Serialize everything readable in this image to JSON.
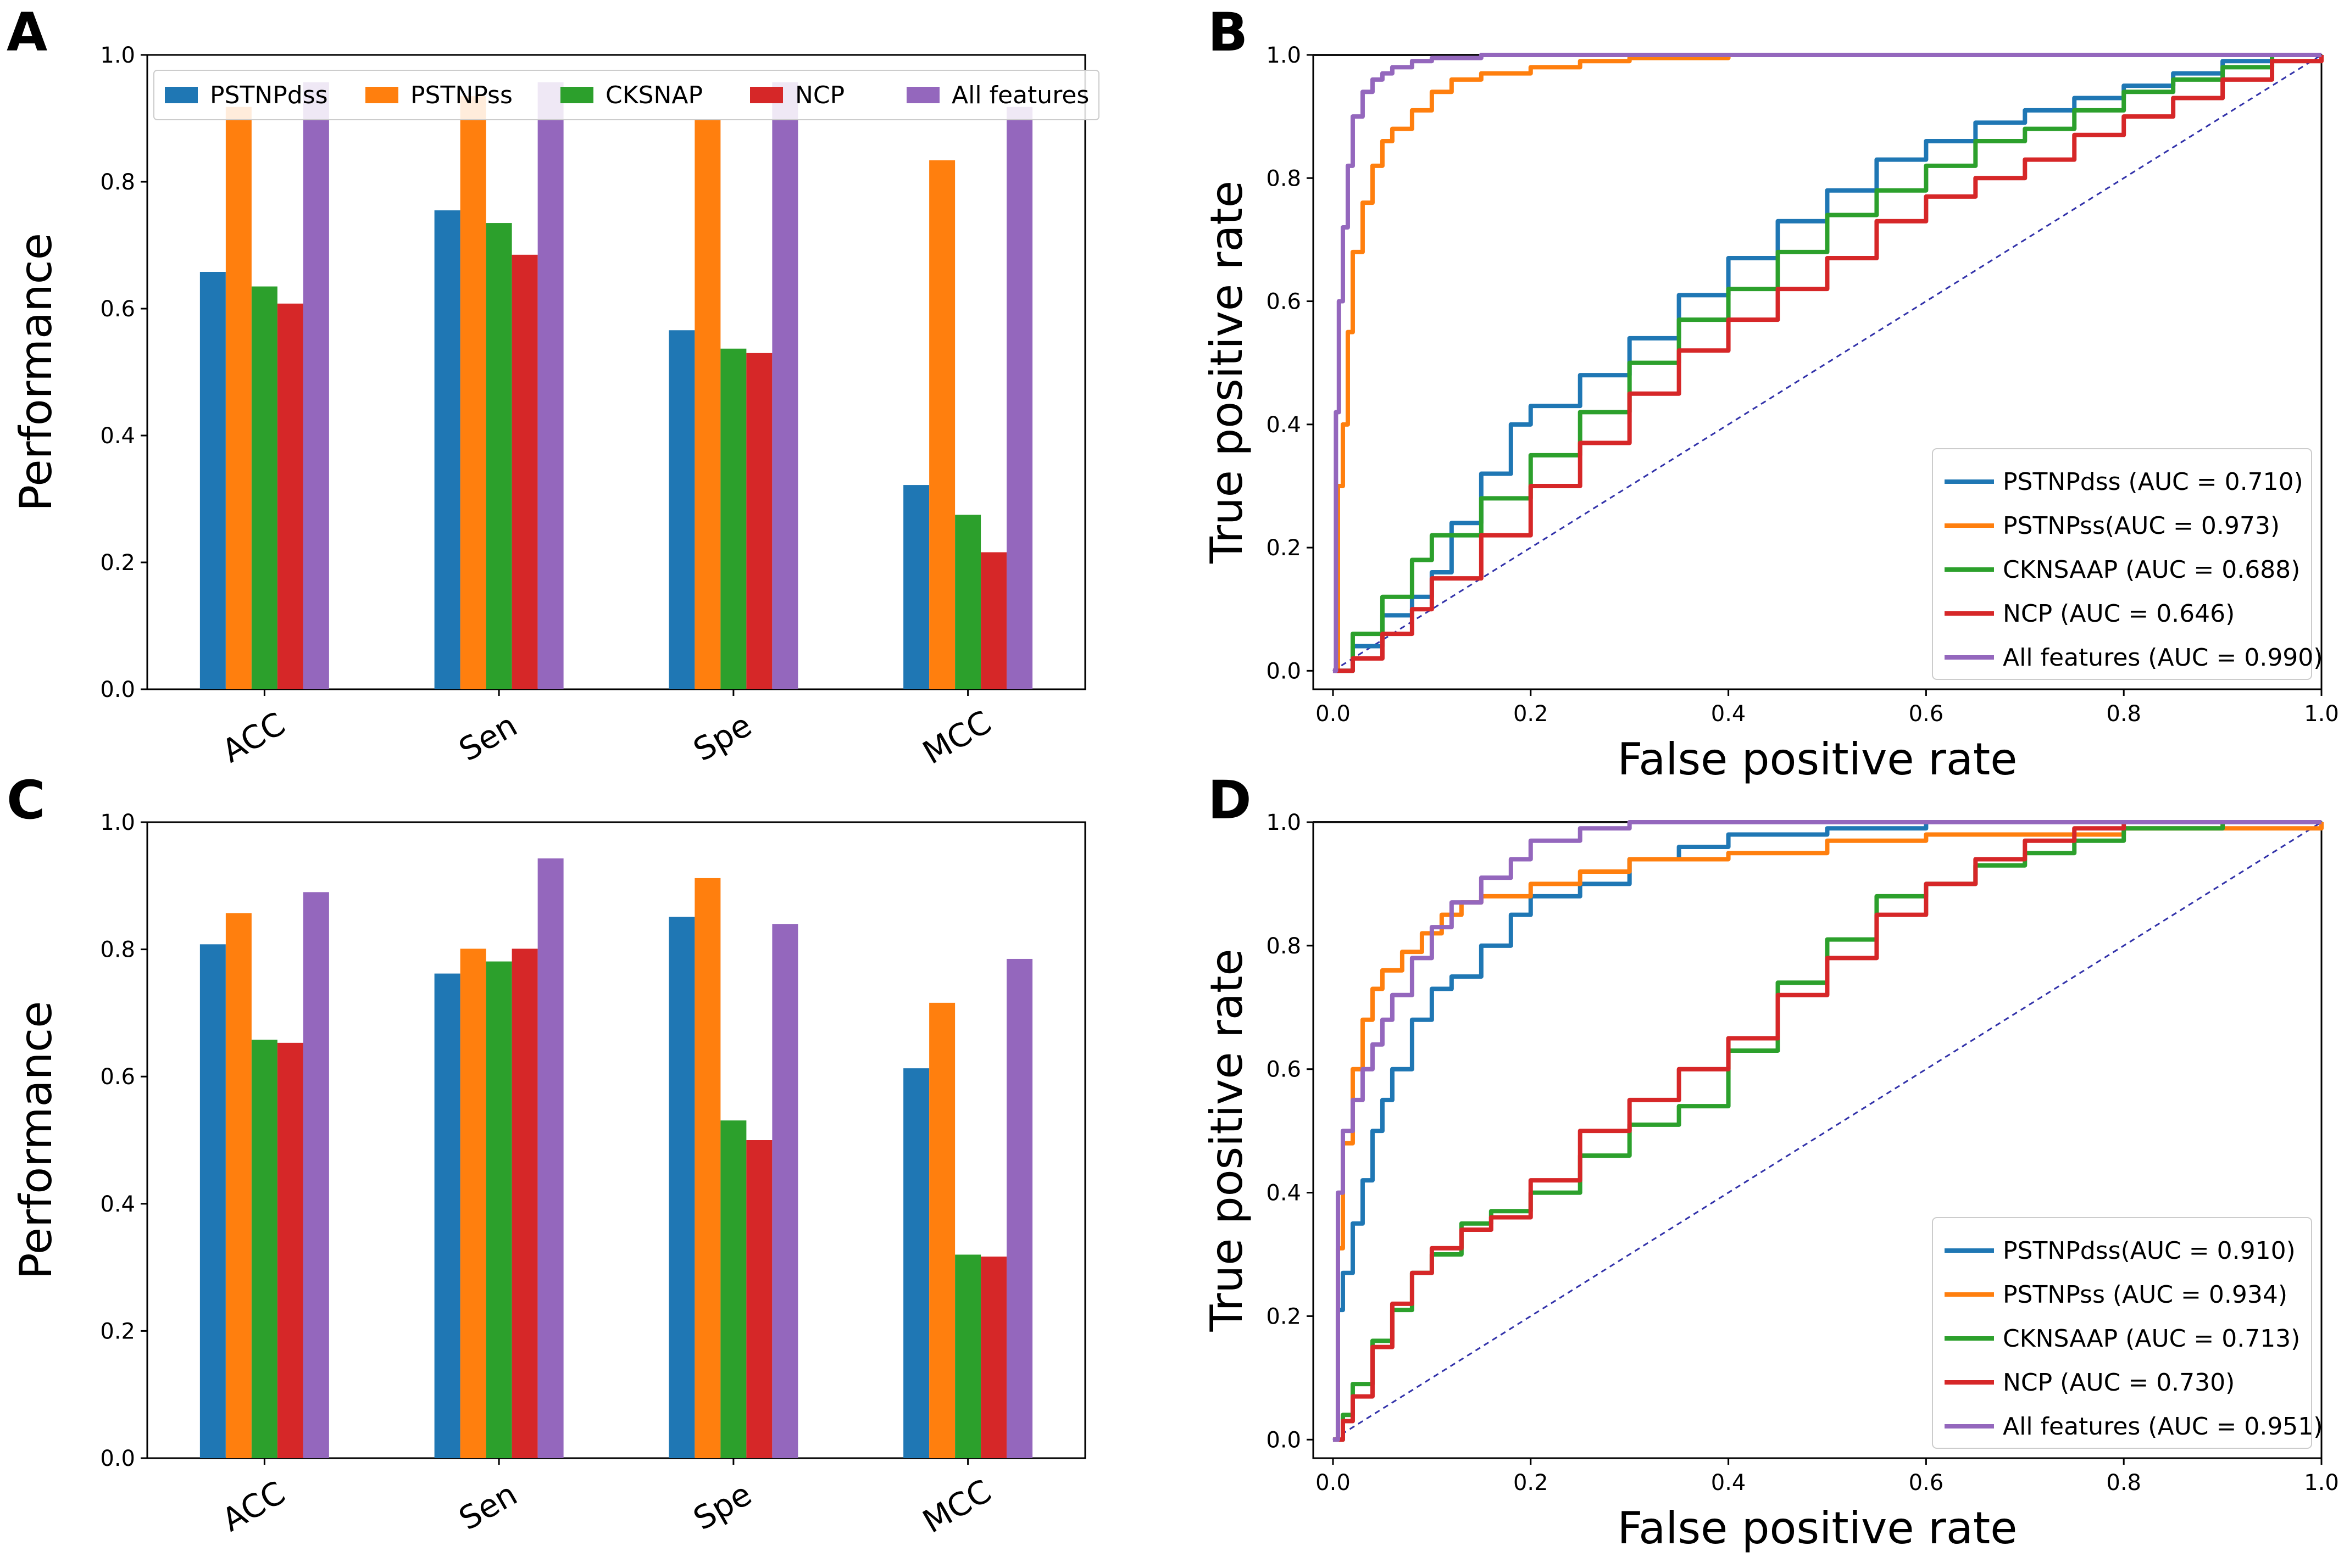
{
  "chart_data": [
    {
      "panel": "A",
      "type": "bar",
      "categories": [
        "ACC",
        "Sen",
        "Spe",
        "MCC"
      ],
      "ylabel": "Performance",
      "xlabel": "",
      "ylim": [
        0,
        1.0
      ],
      "yticks": [
        "0.0",
        "0.2",
        "0.4",
        "0.6",
        "0.8",
        "1.0"
      ],
      "legend_position": "top",
      "series": [
        {
          "name": "PSTNPdss",
          "color": "#1f77b4",
          "values": [
            0.658,
            0.755,
            0.566,
            0.322
          ]
        },
        {
          "name": "PSTNPss",
          "color": "#ff7f0e",
          "values": [
            0.918,
            0.935,
            0.897,
            0.834
          ]
        },
        {
          "name": "CKSNAP",
          "color": "#2ca02c",
          "values": [
            0.635,
            0.735,
            0.537,
            0.275
          ]
        },
        {
          "name": "NCP",
          "color": "#d62728",
          "values": [
            0.608,
            0.685,
            0.53,
            0.216
          ]
        },
        {
          "name": "All features",
          "color": "#9467bd",
          "values": [
            0.957,
            0.957,
            0.957,
            0.918
          ]
        }
      ]
    },
    {
      "panel": "B",
      "type": "line",
      "xlabel": "False positive rate",
      "ylabel": "True positive rate",
      "xlim": [
        0,
        1.0
      ],
      "ylim": [
        0,
        1.0
      ],
      "xticks": [
        "0.0",
        "0.2",
        "0.4",
        "0.6",
        "0.8",
        "1.0"
      ],
      "yticks": [
        "0.0",
        "0.2",
        "0.4",
        "0.6",
        "0.8",
        "1.0"
      ],
      "legend_position": "lower-right",
      "diagonal_color": "#3333aa",
      "series": [
        {
          "name": "PSTNPdss (AUC = 0.710)",
          "color": "#1f77b4",
          "x": [
            0,
            0.02,
            0.05,
            0.08,
            0.1,
            0.12,
            0.15,
            0.18,
            0.2,
            0.25,
            0.3,
            0.35,
            0.4,
            0.45,
            0.5,
            0.55,
            0.6,
            0.65,
            0.7,
            0.75,
            0.8,
            0.85,
            0.9,
            0.95,
            1.0
          ],
          "y": [
            0,
            0.04,
            0.09,
            0.12,
            0.16,
            0.24,
            0.32,
            0.4,
            0.43,
            0.48,
            0.54,
            0.61,
            0.67,
            0.73,
            0.78,
            0.83,
            0.86,
            0.89,
            0.91,
            0.93,
            0.95,
            0.97,
            0.99,
            1.0,
            1.0
          ]
        },
        {
          "name": "PSTNPss(AUC = 0.973)",
          "color": "#ff7f0e",
          "x": [
            0,
            0.005,
            0.01,
            0.015,
            0.02,
            0.03,
            0.04,
            0.05,
            0.06,
            0.08,
            0.1,
            0.12,
            0.15,
            0.2,
            0.25,
            0.3,
            0.4,
            0.5,
            0.6,
            0.8,
            1.0
          ],
          "y": [
            0,
            0.3,
            0.4,
            0.55,
            0.68,
            0.76,
            0.82,
            0.86,
            0.88,
            0.91,
            0.94,
            0.96,
            0.97,
            0.98,
            0.99,
            0.995,
            1.0,
            1.0,
            1.0,
            1.0,
            1.0
          ]
        },
        {
          "name": "CKNSAAP (AUC = 0.688)",
          "color": "#2ca02c",
          "x": [
            0,
            0.02,
            0.05,
            0.08,
            0.1,
            0.15,
            0.2,
            0.25,
            0.3,
            0.35,
            0.4,
            0.45,
            0.5,
            0.55,
            0.6,
            0.65,
            0.7,
            0.75,
            0.8,
            0.85,
            0.9,
            0.95,
            1.0
          ],
          "y": [
            0,
            0.06,
            0.12,
            0.18,
            0.22,
            0.28,
            0.35,
            0.42,
            0.5,
            0.57,
            0.62,
            0.68,
            0.74,
            0.78,
            0.82,
            0.86,
            0.88,
            0.91,
            0.94,
            0.96,
            0.98,
            1.0,
            1.0
          ]
        },
        {
          "name": "NCP (AUC = 0.646)",
          "color": "#d62728",
          "x": [
            0,
            0.02,
            0.05,
            0.08,
            0.1,
            0.15,
            0.2,
            0.25,
            0.3,
            0.35,
            0.4,
            0.45,
            0.5,
            0.55,
            0.6,
            0.65,
            0.7,
            0.75,
            0.8,
            0.85,
            0.9,
            0.95,
            1.0
          ],
          "y": [
            0,
            0.02,
            0.06,
            0.1,
            0.15,
            0.22,
            0.3,
            0.37,
            0.45,
            0.52,
            0.57,
            0.62,
            0.67,
            0.73,
            0.77,
            0.8,
            0.83,
            0.87,
            0.9,
            0.93,
            0.96,
            0.99,
            1.0
          ]
        },
        {
          "name": "All features (AUC = 0.990)",
          "color": "#9467bd",
          "x": [
            0,
            0.003,
            0.006,
            0.01,
            0.015,
            0.02,
            0.03,
            0.04,
            0.05,
            0.06,
            0.08,
            0.1,
            0.15,
            0.2,
            0.3,
            0.5,
            0.8,
            1.0
          ],
          "y": [
            0,
            0.42,
            0.6,
            0.72,
            0.82,
            0.9,
            0.94,
            0.96,
            0.97,
            0.98,
            0.99,
            0.995,
            1.0,
            1.0,
            1.0,
            1.0,
            1.0,
            1.0
          ]
        }
      ]
    },
    {
      "panel": "C",
      "type": "bar",
      "categories": [
        "ACC",
        "Sen",
        "Spe",
        "MCC"
      ],
      "ylabel": "Performance",
      "xlabel": "",
      "ylim": [
        0,
        1.0
      ],
      "yticks": [
        "0.0",
        "0.2",
        "0.4",
        "0.6",
        "0.8",
        "1.0"
      ],
      "series": [
        {
          "name": "PSTNPdss",
          "color": "#1f77b4",
          "values": [
            0.808,
            0.762,
            0.851,
            0.613
          ]
        },
        {
          "name": "PSTNPss",
          "color": "#ff7f0e",
          "values": [
            0.857,
            0.801,
            0.912,
            0.716
          ]
        },
        {
          "name": "CKSNAP",
          "color": "#2ca02c",
          "values": [
            0.658,
            0.781,
            0.531,
            0.32
          ]
        },
        {
          "name": "NCP",
          "color": "#d62728",
          "values": [
            0.653,
            0.801,
            0.5,
            0.317
          ]
        },
        {
          "name": "All features",
          "color": "#9467bd",
          "values": [
            0.89,
            0.943,
            0.84,
            0.785
          ]
        }
      ]
    },
    {
      "panel": "D",
      "type": "line",
      "xlabel": "False positive rate",
      "ylabel": "True positive rate",
      "xlim": [
        0,
        1.0
      ],
      "ylim": [
        0,
        1.0
      ],
      "xticks": [
        "0.0",
        "0.2",
        "0.4",
        "0.6",
        "0.8",
        "1.0"
      ],
      "yticks": [
        "0.0",
        "0.2",
        "0.4",
        "0.6",
        "0.8",
        "1.0"
      ],
      "legend_position": "lower-right",
      "diagonal_color": "#3333aa",
      "series": [
        {
          "name": "PSTNPdss(AUC = 0.910)",
          "color": "#1f77b4",
          "x": [
            0,
            0.005,
            0.01,
            0.02,
            0.03,
            0.04,
            0.05,
            0.06,
            0.08,
            0.1,
            0.12,
            0.15,
            0.18,
            0.2,
            0.25,
            0.3,
            0.35,
            0.4,
            0.5,
            0.6,
            0.8,
            1.0
          ],
          "y": [
            0,
            0.21,
            0.27,
            0.35,
            0.42,
            0.5,
            0.55,
            0.6,
            0.68,
            0.73,
            0.75,
            0.8,
            0.85,
            0.88,
            0.9,
            0.94,
            0.96,
            0.98,
            0.99,
            1.0,
            1.0,
            1.0
          ]
        },
        {
          "name": "PSTNPss (AUC = 0.934)",
          "color": "#ff7f0e",
          "x": [
            0,
            0.005,
            0.01,
            0.02,
            0.03,
            0.04,
            0.05,
            0.07,
            0.09,
            0.11,
            0.13,
            0.15,
            0.2,
            0.25,
            0.3,
            0.4,
            0.5,
            0.6,
            0.7,
            0.8,
            0.9,
            1.0
          ],
          "y": [
            0,
            0.31,
            0.48,
            0.6,
            0.68,
            0.73,
            0.76,
            0.79,
            0.82,
            0.85,
            0.87,
            0.88,
            0.9,
            0.92,
            0.94,
            0.95,
            0.97,
            0.98,
            0.98,
            0.99,
            0.99,
            1.0
          ]
        },
        {
          "name": "CKNSAAP (AUC = 0.713)",
          "color": "#2ca02c",
          "x": [
            0,
            0.01,
            0.02,
            0.04,
            0.06,
            0.08,
            0.1,
            0.13,
            0.16,
            0.2,
            0.25,
            0.3,
            0.35,
            0.4,
            0.45,
            0.5,
            0.55,
            0.6,
            0.65,
            0.7,
            0.75,
            0.8,
            0.9,
            1.0
          ],
          "y": [
            0,
            0.04,
            0.09,
            0.16,
            0.21,
            0.27,
            0.3,
            0.35,
            0.37,
            0.4,
            0.46,
            0.51,
            0.54,
            0.63,
            0.74,
            0.81,
            0.88,
            0.9,
            0.93,
            0.95,
            0.97,
            0.99,
            1.0,
            1.0
          ]
        },
        {
          "name": "NCP (AUC = 0.730)",
          "color": "#d62728",
          "x": [
            0,
            0.01,
            0.02,
            0.04,
            0.06,
            0.08,
            0.1,
            0.13,
            0.16,
            0.2,
            0.25,
            0.3,
            0.35,
            0.4,
            0.45,
            0.5,
            0.55,
            0.6,
            0.65,
            0.7,
            0.75,
            0.8,
            0.9,
            1.0
          ],
          "y": [
            0,
            0.03,
            0.07,
            0.15,
            0.22,
            0.27,
            0.31,
            0.34,
            0.36,
            0.42,
            0.5,
            0.55,
            0.6,
            0.65,
            0.72,
            0.78,
            0.85,
            0.9,
            0.94,
            0.97,
            0.99,
            1.0,
            1.0,
            1.0
          ]
        },
        {
          "name": "All features (AUC = 0.951)",
          "color": "#9467bd",
          "x": [
            0,
            0.005,
            0.01,
            0.02,
            0.03,
            0.04,
            0.05,
            0.06,
            0.08,
            0.1,
            0.12,
            0.15,
            0.18,
            0.2,
            0.25,
            0.3,
            0.4,
            0.5,
            0.7,
            1.0
          ],
          "y": [
            0,
            0.4,
            0.5,
            0.55,
            0.6,
            0.64,
            0.68,
            0.72,
            0.78,
            0.83,
            0.87,
            0.91,
            0.94,
            0.97,
            0.99,
            1.0,
            1.0,
            1.0,
            1.0,
            1.0
          ]
        }
      ]
    }
  ]
}
